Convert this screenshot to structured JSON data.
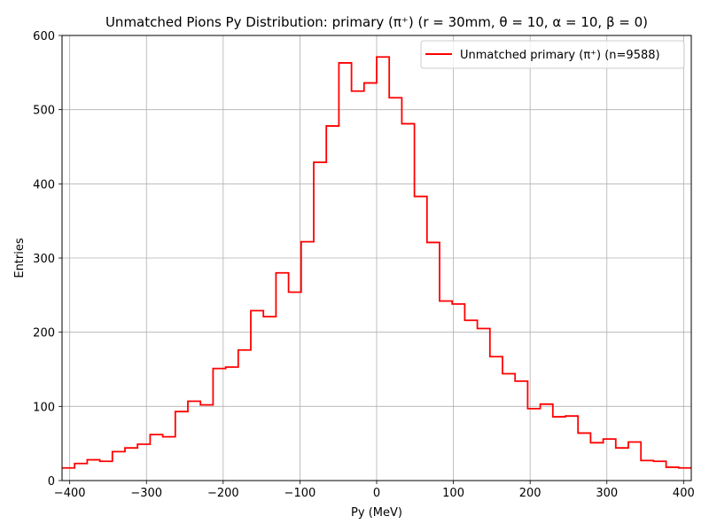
{
  "chart_data": {
    "type": "histogram-step",
    "title": "Unmatched Pions Py Distribution: primary (π⁺) (r = 30mm, θ = 10, α = 10, β = 0)",
    "xlabel": "Py (MeV)",
    "ylabel": "Entries",
    "xlim": [
      -410,
      410
    ],
    "ylim": [
      0,
      600
    ],
    "xticks": [
      -400,
      -300,
      -200,
      -100,
      0,
      100,
      200,
      300,
      400
    ],
    "xtick_labels": [
      "−400",
      "−300",
      "−200",
      "−100",
      "0",
      "100",
      "200",
      "300",
      "400"
    ],
    "yticks": [
      0,
      100,
      200,
      300,
      400,
      500,
      600
    ],
    "ytick_labels": [
      "0",
      "100",
      "200",
      "300",
      "400",
      "500",
      "600"
    ],
    "grid": true,
    "legend_position": "top-right",
    "series": [
      {
        "name": "Unmatched primary (π⁺) (n=9588)",
        "color": "#ff0000",
        "bin_edges": [
          -410,
          -393.6,
          -377.2,
          -360.8,
          -344.4,
          -328,
          -311.6,
          -295.2,
          -278.8,
          -262.4,
          -246,
          -229.6,
          -213.2,
          -196.8,
          -180.4,
          -164,
          -147.6,
          -131.2,
          -114.8,
          -98.4,
          -82,
          -65.6,
          -49.2,
          -32.8,
          -16.4,
          0,
          16.4,
          32.8,
          49.2,
          65.6,
          82,
          98.4,
          114.8,
          131.2,
          147.6,
          164,
          180.4,
          196.8,
          213.2,
          229.6,
          246,
          262.4,
          278.8,
          295.2,
          311.6,
          328,
          344.4,
          360.8,
          377.2,
          393.6,
          410
        ],
        "counts": [
          17,
          23,
          28,
          26,
          39,
          44,
          49,
          62,
          59,
          93,
          107,
          102,
          151,
          153,
          176,
          229,
          221,
          280,
          254,
          322,
          429,
          478,
          563,
          525,
          536,
          571,
          516,
          481,
          383,
          321,
          242,
          238,
          216,
          205,
          167,
          144,
          134,
          97,
          103,
          86,
          87,
          64,
          51,
          56,
          44,
          52,
          27,
          26,
          18,
          17
        ]
      }
    ]
  }
}
